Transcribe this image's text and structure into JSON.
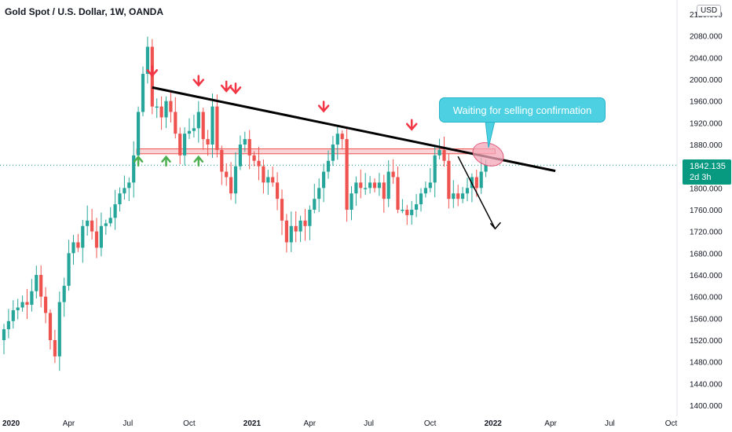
{
  "header": {
    "title": "Gold Spot / U.S. Dollar, 1W, OANDA",
    "currency": "USD"
  },
  "annotation": {
    "callout_text": "Waiting for selling confirmation"
  },
  "price_tag": {
    "price": "1842.135",
    "countdown": "2d 3h"
  },
  "colors": {
    "up": "#26a69a",
    "down": "#ef5350",
    "trendline": "#000000",
    "zone_fill": "#f8c7c9",
    "zone_border": "#ef5350",
    "sell_arrow": "#f23645",
    "buy_arrow": "#4caf50",
    "callout": "#4dd0e1",
    "price_line": "#089981"
  },
  "chart_data": {
    "type": "candlestick",
    "title": "Gold Spot / U.S. Dollar, 1W, OANDA",
    "interval": "1W",
    "source": "OANDA",
    "ylim": [
      1400,
      2120
    ],
    "y_ticks": [
      1400,
      1440,
      1480,
      1520,
      1560,
      1600,
      1640,
      1680,
      1720,
      1760,
      1800,
      1840,
      1880,
      1920,
      1960,
      2000,
      2040,
      2080,
      2120
    ],
    "y_tick_labels": [
      "1400.000",
      "1440.000",
      "1480.000",
      "1520.000",
      "1560.000",
      "1600.000",
      "1640.000",
      "1680.000",
      "1720.000",
      "1760.000",
      "1800.000",
      "1840.000",
      "1880.000",
      "1920.000",
      "1960.000",
      "2000.000",
      "2040.000",
      "2080.000",
      "2120.000"
    ],
    "x_ticks": [
      {
        "label": "2020",
        "week": 0,
        "bold": true
      },
      {
        "label": "Apr",
        "week": 13
      },
      {
        "label": "Jul",
        "week": 26
      },
      {
        "label": "Oct",
        "week": 39
      },
      {
        "label": "2021",
        "week": 52,
        "bold": true
      },
      {
        "label": "Apr",
        "week": 65
      },
      {
        "label": "Jul",
        "week": 78
      },
      {
        "label": "Oct",
        "week": 91
      },
      {
        "label": "2022",
        "week": 104,
        "bold": true
      },
      {
        "label": "Apr",
        "week": 117
      },
      {
        "label": "Jul",
        "week": 130
      },
      {
        "label": "Oct",
        "week": 143
      }
    ],
    "current_price": 1842.135,
    "closes": [
      1540,
      1555,
      1575,
      1580,
      1590,
      1585,
      1610,
      1640,
      1600,
      1570,
      1520,
      1490,
      1590,
      1620,
      1680,
      1700,
      1690,
      1730,
      1740,
      1720,
      1690,
      1730,
      1735,
      1745,
      1770,
      1790,
      1800,
      1810,
      1860,
      1940,
      2010,
      2060,
      1950,
      1950,
      1930,
      1960,
      1940,
      1900,
      1860,
      1900,
      1905,
      1910,
      1940,
      1890,
      1880,
      1950,
      1870,
      1830,
      1820,
      1790,
      1840,
      1880,
      1890,
      1860,
      1850,
      1840,
      1810,
      1820,
      1810,
      1780,
      1740,
      1700,
      1730,
      1720,
      1740,
      1730,
      1760,
      1780,
      1800,
      1830,
      1850,
      1880,
      1900,
      1890,
      1760,
      1790,
      1810,
      1800,
      1800,
      1810,
      1800,
      1810,
      1780,
      1830,
      1820,
      1760,
      1760,
      1750,
      1760,
      1770,
      1790,
      1800,
      1810,
      1860,
      1870,
      1850,
      1780,
      1790,
      1780,
      1790,
      1800,
      1820,
      1800,
      1830,
      1842
    ],
    "trendline": {
      "from": {
        "week": 32,
        "price": 1985
      },
      "to": {
        "week": 113,
        "price": 1842
      }
    },
    "resistance_zone": [
      1863,
      1872
    ],
    "sell_arrows_at_week": [
      32,
      42,
      48,
      50,
      69,
      88
    ],
    "buy_arrows_at_week": [
      29,
      35,
      42
    ],
    "projection": {
      "from": {
        "week": 98,
        "price": 1858
      },
      "to": {
        "week": 106,
        "price": 1725
      }
    }
  }
}
